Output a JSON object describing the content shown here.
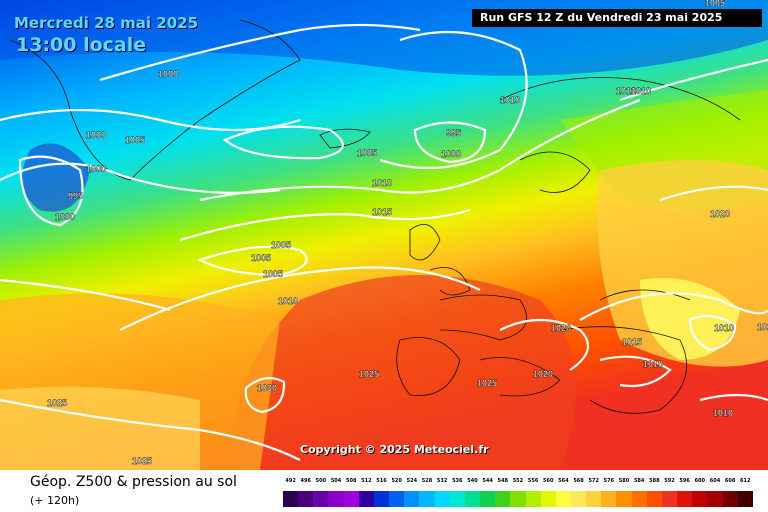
{
  "header": {
    "date": "Mercredi 28 mai 2025",
    "local_time": "13:00 locale",
    "run": "Run GFS 12 Z du Vendredi 23 mai 2025"
  },
  "copyright": "Copyright © 2025 Meteociel.fr",
  "footer": {
    "product": "Géop. Z500 & pression au sol",
    "lead_time": "(+ 120h)"
  },
  "isobar_labels": [
    "1005",
    "1000",
    "1000",
    "1005",
    "1000",
    "995",
    "1000",
    "1005",
    "995",
    "1000",
    "1010",
    "1010",
    "1005",
    "1010",
    "1015",
    "1005",
    "1005",
    "1010",
    "1020",
    "1020",
    "1020",
    "1015",
    "1010",
    "1010",
    "1010",
    "1030",
    "1025",
    "1025",
    "1025",
    "1020",
    "1010",
    "1025"
  ],
  "scale": {
    "values": [
      "492",
      "496",
      "500",
      "504",
      "508",
      "512",
      "516",
      "520",
      "524",
      "528",
      "532",
      "536",
      "540",
      "544",
      "548",
      "552",
      "556",
      "560",
      "564",
      "568",
      "572",
      "576",
      "580",
      "584",
      "588",
      "592",
      "596",
      "600",
      "604",
      "608",
      "612"
    ],
    "colors": [
      "#2b0050",
      "#4a007a",
      "#6a00a8",
      "#8a00c8",
      "#a000e0",
      "#3000a0",
      "#0030d8",
      "#0060f0",
      "#0090ff",
      "#00b8ff",
      "#00d8ff",
      "#00e8d0",
      "#00e090",
      "#10d050",
      "#40d020",
      "#80e000",
      "#b0f000",
      "#e0f800",
      "#ffff40",
      "#ffe860",
      "#ffd040",
      "#ffb020",
      "#ff9000",
      "#ff7000",
      "#ff5000",
      "#f03020",
      "#e01010",
      "#c00000",
      "#a00000",
      "#700000",
      "#400000"
    ]
  }
}
